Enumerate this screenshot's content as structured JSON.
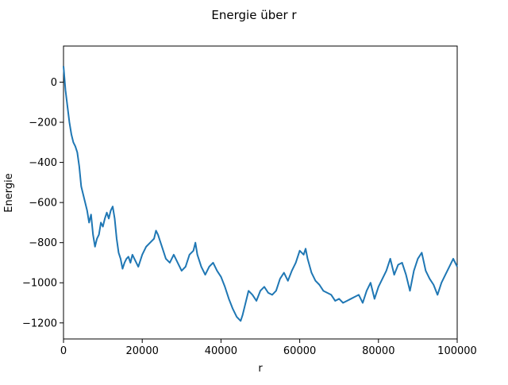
{
  "chart_data": {
    "type": "line",
    "title": "Energie über r",
    "xlabel": "r",
    "ylabel": "Energie",
    "xlim": [
      0,
      100000
    ],
    "ylim": [
      -1280,
      180
    ],
    "xticks": [
      {
        "value": 0,
        "label": "0"
      },
      {
        "value": 20000,
        "label": "20000"
      },
      {
        "value": 40000,
        "label": "40000"
      },
      {
        "value": 60000,
        "label": "60000"
      },
      {
        "value": 80000,
        "label": "80000"
      },
      {
        "value": 100000,
        "label": "100000"
      }
    ],
    "yticks": [
      {
        "value": 0,
        "label": "0"
      },
      {
        "value": -200,
        "label": "−200"
      },
      {
        "value": -400,
        "label": "−400"
      },
      {
        "value": -600,
        "label": "−600"
      },
      {
        "value": -800,
        "label": "−800"
      },
      {
        "value": -1000,
        "label": "−1000"
      },
      {
        "value": -1200,
        "label": "−1200"
      }
    ],
    "grid": false,
    "legend": "none",
    "series": [
      {
        "color": "#1f77b4",
        "x": [
          0,
          500,
          1000,
          1500,
          2000,
          2500,
          3000,
          3500,
          4000,
          4500,
          5000,
          5500,
          6000,
          6500,
          7000,
          7500,
          8000,
          8500,
          9000,
          9500,
          10000,
          10500,
          11000,
          11500,
          12000,
          12500,
          13000,
          13500,
          14000,
          14500,
          15000,
          15500,
          16000,
          16500,
          17000,
          17500,
          18000,
          19000,
          20000,
          21000,
          22000,
          23000,
          23500,
          24000,
          24500,
          25000,
          26000,
          27000,
          28000,
          29000,
          30000,
          31000,
          32000,
          33000,
          33500,
          34000,
          35000,
          36000,
          37000,
          38000,
          39000,
          40000,
          41000,
          42000,
          43000,
          44000,
          45000,
          45500,
          46000,
          47000,
          48000,
          49000,
          50000,
          51000,
          52000,
          53000,
          54000,
          55000,
          56000,
          57000,
          58000,
          59000,
          60000,
          61000,
          61500,
          62000,
          63000,
          64000,
          65000,
          66000,
          67000,
          68000,
          69000,
          70000,
          71000,
          72000,
          73000,
          74000,
          75000,
          76000,
          77000,
          78000,
          79000,
          80000,
          81000,
          82000,
          83000,
          84000,
          85000,
          86000,
          87000,
          88000,
          89000,
          90000,
          91000,
          92000,
          93000,
          94000,
          95000,
          96000,
          97000,
          98000,
          99000,
          100000
        ],
        "y": [
          80,
          -40,
          -120,
          -200,
          -260,
          -300,
          -320,
          -350,
          -420,
          -520,
          -560,
          -600,
          -640,
          -700,
          -660,
          -760,
          -820,
          -780,
          -760,
          -700,
          -720,
          -680,
          -650,
          -680,
          -640,
          -620,
          -680,
          -780,
          -850,
          -880,
          -930,
          -900,
          -880,
          -870,
          -900,
          -860,
          -880,
          -920,
          -860,
          -820,
          -800,
          -780,
          -740,
          -760,
          -790,
          -820,
          -880,
          -900,
          -860,
          -900,
          -940,
          -920,
          -860,
          -840,
          -800,
          -860,
          -920,
          -960,
          -920,
          -900,
          -940,
          -970,
          -1020,
          -1080,
          -1130,
          -1170,
          -1190,
          -1160,
          -1120,
          -1040,
          -1060,
          -1090,
          -1040,
          -1020,
          -1050,
          -1060,
          -1040,
          -980,
          -950,
          -990,
          -940,
          -900,
          -840,
          -860,
          -830,
          -880,
          -950,
          -990,
          -1010,
          -1040,
          -1050,
          -1060,
          -1090,
          -1080,
          -1100,
          -1090,
          -1080,
          -1070,
          -1060,
          -1100,
          -1040,
          -1000,
          -1080,
          -1020,
          -980,
          -940,
          -880,
          -960,
          -910,
          -900,
          -960,
          -1040,
          -940,
          -880,
          -850,
          -940,
          -980,
          -1010,
          -1060,
          -1000,
          -960,
          -920,
          -880,
          -920
        ]
      }
    ]
  }
}
